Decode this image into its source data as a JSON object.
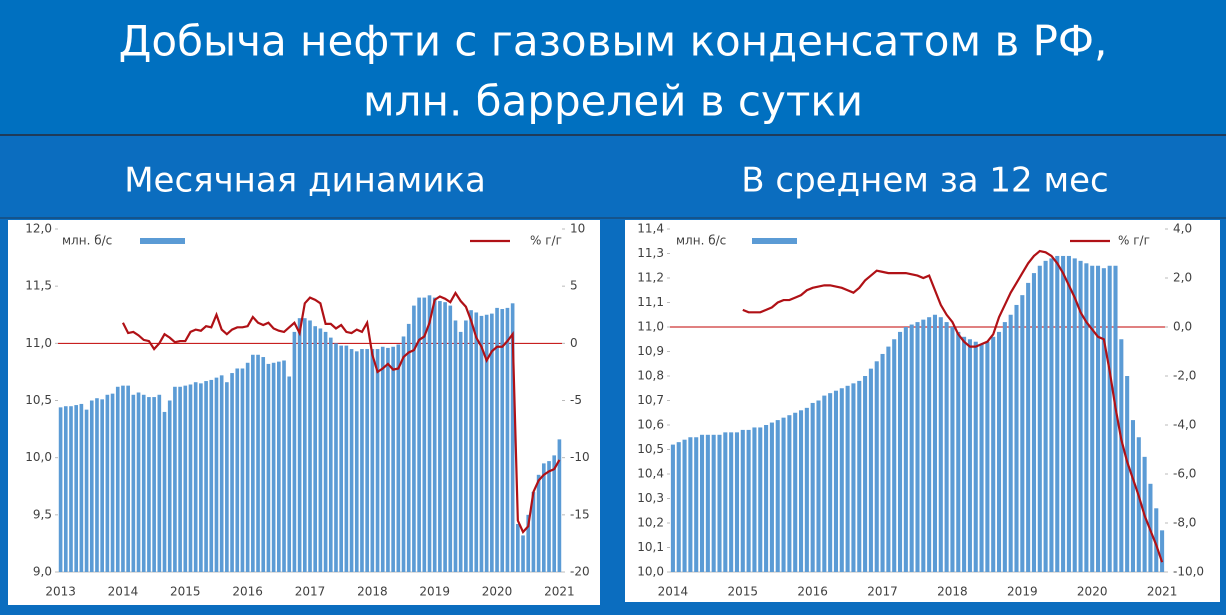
{
  "header": {
    "title": [
      "Добыча нефти с газовым конденсатом в РФ,",
      "млн. баррелей в сутки"
    ]
  },
  "chart_data": [
    {
      "type": "bar",
      "title": "Месячная динамика",
      "categories": [
        "2013",
        null,
        null,
        null,
        null,
        null,
        null,
        null,
        null,
        null,
        null,
        null,
        "2014",
        null,
        null,
        null,
        null,
        null,
        null,
        null,
        null,
        null,
        null,
        null,
        "2015",
        null,
        null,
        null,
        null,
        null,
        null,
        null,
        null,
        null,
        null,
        null,
        "2016",
        null,
        null,
        null,
        null,
        null,
        null,
        null,
        null,
        null,
        null,
        null,
        "2017",
        null,
        null,
        null,
        null,
        null,
        null,
        null,
        null,
        null,
        null,
        null,
        "2018",
        null,
        null,
        null,
        null,
        null,
        null,
        null,
        null,
        null,
        null,
        null,
        "2019",
        null,
        null,
        null,
        null,
        null,
        null,
        null,
        null,
        null,
        null,
        null,
        "2020",
        null,
        null,
        null,
        null,
        null,
        null,
        null,
        null,
        null,
        null,
        null,
        "2021"
      ],
      "series": [
        {
          "name": "млн. б/с",
          "color": "#5b9bd5",
          "values": [
            10.44,
            10.45,
            10.45,
            10.46,
            10.47,
            10.42,
            10.5,
            10.52,
            10.51,
            10.55,
            10.56,
            10.62,
            10.63,
            10.63,
            10.55,
            10.57,
            10.55,
            10.53,
            10.53,
            10.55,
            10.4,
            10.5,
            10.62,
            10.62,
            10.63,
            10.64,
            10.66,
            10.65,
            10.67,
            10.68,
            10.7,
            10.72,
            10.66,
            10.74,
            10.78,
            10.78,
            10.83,
            10.9,
            10.9,
            10.88,
            10.82,
            10.83,
            10.84,
            10.85,
            10.71,
            11.1,
            11.22,
            11.22,
            11.2,
            11.15,
            11.13,
            11.1,
            11.05,
            11.0,
            10.98,
            10.98,
            10.95,
            10.93,
            10.95,
            10.95,
            10.95,
            10.95,
            10.97,
            10.96,
            10.97,
            10.99,
            11.06,
            11.17,
            11.33,
            11.4,
            11.4,
            11.42,
            11.4,
            11.37,
            11.36,
            11.33,
            11.2,
            11.1,
            11.2,
            11.29,
            11.27,
            11.24,
            11.25,
            11.26,
            11.31,
            11.3,
            11.31,
            11.35,
            9.42,
            9.32,
            9.5,
            9.7,
            9.85,
            9.95,
            9.97,
            10.02,
            10.16
          ]
        },
        {
          "name": "% г/г",
          "color": "#b01116",
          "axis": "y2",
          "values": [
            null,
            null,
            null,
            null,
            null,
            null,
            null,
            null,
            null,
            null,
            null,
            null,
            1.8,
            0.9,
            1.0,
            0.7,
            0.3,
            0.2,
            -0.5,
            0.0,
            0.8,
            0.5,
            0.1,
            0.2,
            0.2,
            1.0,
            1.2,
            1.1,
            1.5,
            1.4,
            2.5,
            1.2,
            0.8,
            1.2,
            1.4,
            1.4,
            1.5,
            2.3,
            1.8,
            1.6,
            1.8,
            1.3,
            1.1,
            1.0,
            1.4,
            1.8,
            0.9,
            3.5,
            4.0,
            3.8,
            3.5,
            1.7,
            1.7,
            1.3,
            1.6,
            1.0,
            0.9,
            1.2,
            1.0,
            1.8,
            -1.0,
            -2.5,
            -2.2,
            -1.8,
            -2.3,
            -2.2,
            -1.2,
            -0.8,
            -0.6,
            0.3,
            0.6,
            1.8,
            3.8,
            4.1,
            3.9,
            3.6,
            4.4,
            3.7,
            3.2,
            2.0,
            0.5,
            -0.3,
            -1.5,
            -0.7,
            -0.3,
            -0.3,
            0.2,
            0.8,
            -15.5,
            -16.5,
            -16.0,
            -13.0,
            -12.0,
            -11.5,
            -11.2,
            -11.0,
            -10.2
          ]
        }
      ],
      "ylim": [
        9,
        12
      ],
      "yticks": [
        {
          "value": 9,
          "label": "9,0"
        },
        {
          "value": 9.5,
          "label": "9,5"
        },
        {
          "value": 10,
          "label": "10,0"
        },
        {
          "value": 10.5,
          "label": "10,5"
        },
        {
          "value": 11,
          "label": "11,0"
        },
        {
          "value": 11.5,
          "label": "11,5"
        },
        {
          "value": 12,
          "label": "12,0"
        }
      ],
      "y2lim": [
        -20,
        10
      ],
      "y2ticks": [
        -20,
        -15,
        -10,
        -5,
        0,
        5,
        10
      ],
      "zero_line": true
    },
    {
      "type": "bar",
      "title": "В среднем за 12 мес",
      "categories": [
        "2014",
        null,
        null,
        null,
        null,
        null,
        null,
        null,
        null,
        null,
        null,
        null,
        "2015",
        null,
        null,
        null,
        null,
        null,
        null,
        null,
        null,
        null,
        null,
        null,
        "2016",
        null,
        null,
        null,
        null,
        null,
        null,
        null,
        null,
        null,
        null,
        null,
        "2017",
        null,
        null,
        null,
        null,
        null,
        null,
        null,
        null,
        null,
        null,
        null,
        "2018",
        null,
        null,
        null,
        null,
        null,
        null,
        null,
        null,
        null,
        null,
        null,
        "2019",
        null,
        null,
        null,
        null,
        null,
        null,
        null,
        null,
        null,
        null,
        null,
        "2020",
        null,
        null,
        null,
        null,
        null,
        null,
        null,
        null,
        null,
        null,
        null,
        "2021"
      ],
      "series": [
        {
          "name": "млн. б/с",
          "color": "#5b9bd5",
          "values": [
            10.52,
            10.53,
            10.54,
            10.55,
            10.55,
            10.56,
            10.56,
            10.56,
            10.56,
            10.57,
            10.57,
            10.57,
            10.58,
            10.58,
            10.59,
            10.59,
            10.6,
            10.61,
            10.62,
            10.63,
            10.64,
            10.65,
            10.66,
            10.67,
            10.69,
            10.7,
            10.72,
            10.73,
            10.74,
            10.75,
            10.76,
            10.77,
            10.78,
            10.8,
            10.83,
            10.86,
            10.89,
            10.92,
            10.95,
            10.98,
            11.0,
            11.01,
            11.02,
            11.03,
            11.04,
            11.05,
            11.04,
            11.02,
            11.0,
            10.98,
            10.96,
            10.95,
            10.94,
            10.93,
            10.94,
            10.96,
            10.98,
            11.02,
            11.05,
            11.09,
            11.13,
            11.18,
            11.22,
            11.25,
            11.27,
            11.28,
            11.29,
            11.29,
            11.29,
            11.28,
            11.27,
            11.26,
            11.25,
            11.25,
            11.24,
            11.25,
            11.25,
            10.95,
            10.8,
            10.62,
            10.55,
            10.47,
            10.36,
            10.26,
            10.17
          ]
        },
        {
          "name": "% г/г",
          "color": "#b01116",
          "axis": "y2",
          "values": [
            null,
            null,
            null,
            null,
            null,
            null,
            null,
            null,
            null,
            null,
            null,
            null,
            0.7,
            0.6,
            0.6,
            0.6,
            0.7,
            0.8,
            1.0,
            1.1,
            1.1,
            1.2,
            1.3,
            1.5,
            1.6,
            1.65,
            1.7,
            1.7,
            1.65,
            1.6,
            1.5,
            1.4,
            1.6,
            1.9,
            2.1,
            2.3,
            2.25,
            2.2,
            2.2,
            2.2,
            2.2,
            2.15,
            2.1,
            2.0,
            2.1,
            1.5,
            0.9,
            0.5,
            0.2,
            -0.3,
            -0.6,
            -0.8,
            -0.8,
            -0.7,
            -0.6,
            -0.3,
            0.4,
            0.9,
            1.4,
            1.8,
            2.2,
            2.6,
            2.9,
            3.1,
            3.05,
            2.9,
            2.6,
            2.2,
            1.7,
            1.2,
            0.6,
            0.2,
            -0.1,
            -0.4,
            -0.5,
            -1.8,
            -3.3,
            -4.6,
            -5.5,
            -6.2,
            -6.9,
            -7.7,
            -8.3,
            -8.9,
            -9.6
          ]
        }
      ],
      "ylim": [
        10,
        11.4
      ],
      "yticks": [
        {
          "value": 10,
          "label": "10,0"
        },
        {
          "value": 10.1,
          "label": "10,1"
        },
        {
          "value": 10.2,
          "label": "10,2"
        },
        {
          "value": 10.3,
          "label": "10,3"
        },
        {
          "value": 10.4,
          "label": "10,4"
        },
        {
          "value": 10.5,
          "label": "10,5"
        },
        {
          "value": 10.6,
          "label": "10,6"
        },
        {
          "value": 10.7,
          "label": "10,7"
        },
        {
          "value": 10.8,
          "label": "10,8"
        },
        {
          "value": 10.9,
          "label": "10,9"
        },
        {
          "value": 11,
          "label": "11,0"
        },
        {
          "value": 11.1,
          "label": "11,1"
        },
        {
          "value": 11.2,
          "label": "11,2"
        },
        {
          "value": 11.3,
          "label": "11,3"
        },
        {
          "value": 11.4,
          "label": "11,4"
        }
      ],
      "y2lim": [
        -10,
        4
      ],
      "y2ticks": [
        {
          "value": -10,
          "label": "-10,0"
        },
        {
          "value": -8,
          "label": "-8,0"
        },
        {
          "value": -6,
          "label": "-6,0"
        },
        {
          "value": -4,
          "label": "-4,0"
        },
        {
          "value": -2,
          "label": "-2,0"
        },
        {
          "value": 0,
          "label": "0,0"
        },
        {
          "value": 2,
          "label": "2,0"
        },
        {
          "value": 4,
          "label": "4,0"
        }
      ],
      "zero_line": true
    }
  ]
}
